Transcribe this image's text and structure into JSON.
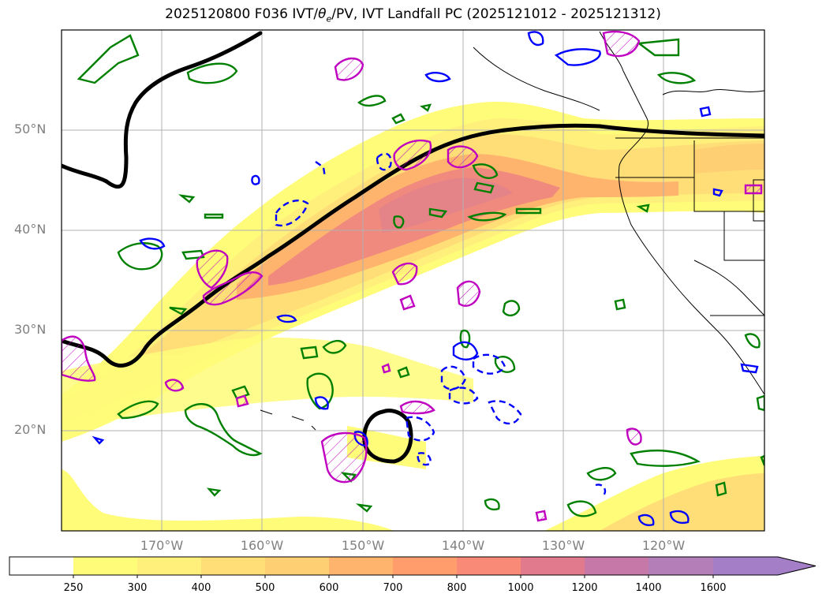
{
  "title": "2025120800 F036 IVT/θe/PV, IVT Landfall PC (2025121012 - 2025121312)",
  "title_parts": {
    "prefix": "2025120800 F036 IVT/",
    "theta": "θ",
    "theta_sub": "e",
    "suffix": "/PV, IVT Landfall PC (2025121012 - 2025121312)"
  },
  "lat_labels": [
    "50°N",
    "40°N",
    "30°N",
    "20°N"
  ],
  "lon_labels": [
    "170°W",
    "160°W",
    "150°W",
    "140°W",
    "130°W",
    "120°W"
  ],
  "colorbar": {
    "ticks": [
      "250",
      "300",
      "400",
      "500",
      "600",
      "700",
      "800",
      "1000",
      "1200",
      "1400",
      "1600"
    ],
    "colors": [
      "#ffffff",
      "#fffc7a",
      "#fff07c",
      "#ffde78",
      "#ffcf74",
      "#ffb46e",
      "#ff9e6c",
      "#f88a77",
      "#e17a8d",
      "#c678a8",
      "#a47fc8"
    ],
    "extend": "max"
  },
  "map": {
    "projection": "PlateCarree",
    "lon_range": [
      -180,
      -110
    ],
    "lat_range": [
      10,
      60
    ],
    "colors": {
      "ivt_fill": "#ffd879",
      "ivt_core": "#f08a7e",
      "landfall_pc_contour": "#000000",
      "theta_e_contour": "#008000",
      "pv_contour": "#0000ff",
      "pv_hatch_contour": "#c000c0",
      "coastline": "#000000"
    }
  }
}
